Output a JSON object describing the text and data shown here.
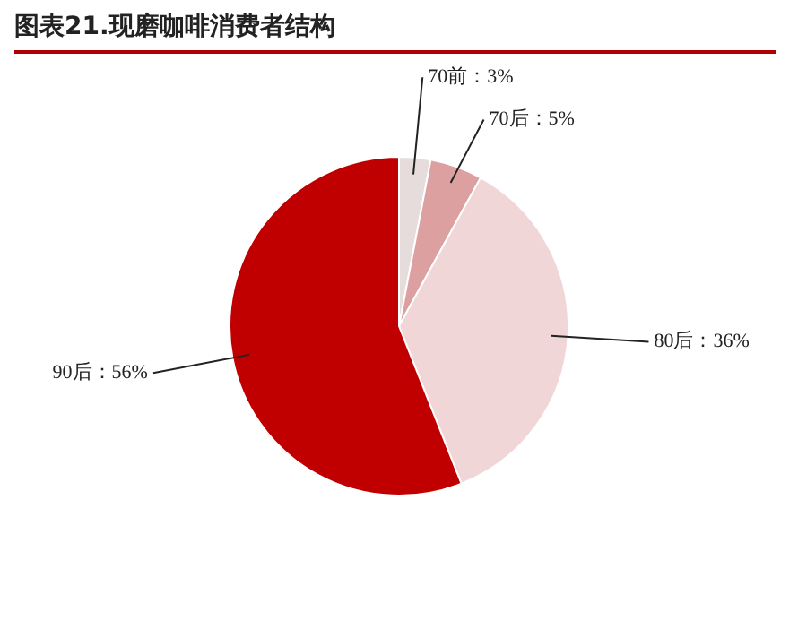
{
  "chart_data": {
    "type": "pie",
    "title": "图表21.现磨咖啡消费者结构",
    "categories": [
      "70前",
      "70后",
      "80后",
      "90后"
    ],
    "values": [
      3,
      5,
      36,
      56
    ],
    "value_labels": [
      "3%",
      "5%",
      "36%",
      "56%"
    ],
    "colors": [
      "#e6dcdc",
      "#dca0a0",
      "#f0d6d6",
      "#c00000"
    ],
    "legend": false
  }
}
